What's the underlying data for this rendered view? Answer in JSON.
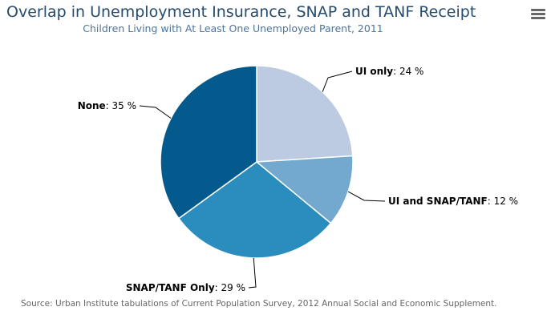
{
  "title": "Overlap in Unemployment Insurance, SNAP and TANF Receipt",
  "subtitle": "Children Living with At Least One Unemployed Parent, 2011",
  "menu_icon": "hamburger-menu-icon",
  "source": "Source: Urban Institute tabulations of Current Population Survey, 2012 Annual Social and Economic Supplement.",
  "chart_data": {
    "type": "pie",
    "slices": [
      {
        "label": "UI only",
        "value": 24,
        "unit": "%",
        "color": "#bccbe1"
      },
      {
        "label": "UI and SNAP/TANF",
        "value": 12,
        "unit": "%",
        "color": "#74a9cf"
      },
      {
        "label": "SNAP/TANF Only",
        "value": 29,
        "unit": "%",
        "color": "#2b8cbe"
      },
      {
        "label": "None",
        "value": 35,
        "unit": "%",
        "color": "#045a8d"
      }
    ]
  }
}
